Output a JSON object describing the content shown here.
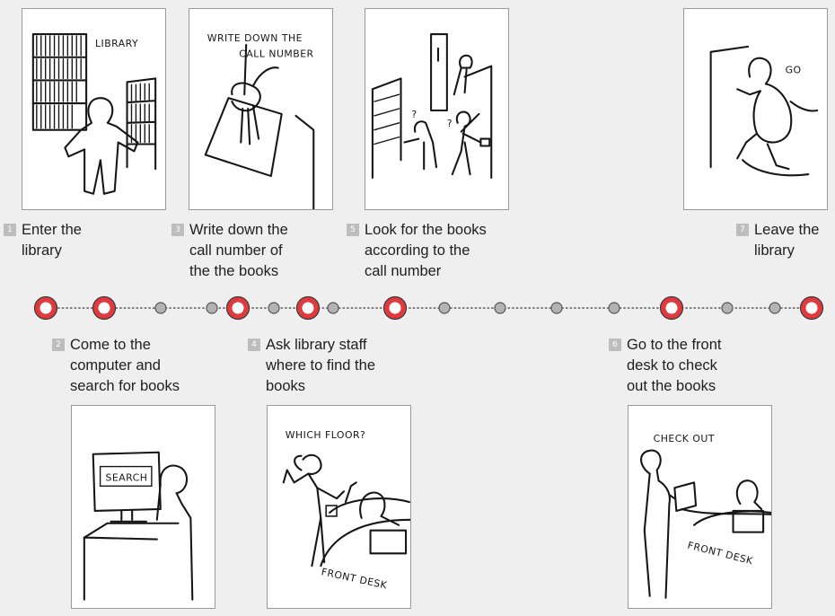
{
  "steps": [
    {
      "number": "1",
      "label": "Enter the\nlibrary",
      "sketch_text": "LIBRARY"
    },
    {
      "number": "2",
      "label": "Come to the\ncomputer and\nsearch for books",
      "sketch_text": "SEARCH"
    },
    {
      "number": "3",
      "label": "Write down the\ncall number of\nthe the books",
      "sketch_text_line1": "WRITE DOWN THE",
      "sketch_text_line2": "CALL NUMBER"
    },
    {
      "number": "4",
      "label": "Ask library staff\nwhere to find the\nbooks",
      "sketch_text": "WHICH FLOOR?",
      "sketch_text_2": "FRONT DESK"
    },
    {
      "number": "5",
      "label": "Look for the books\naccording to the\ncall number",
      "sketch_text": "?",
      "sketch_text_2": "?"
    },
    {
      "number": "6",
      "label": "Go to the front\ndesk to check\nout  the books",
      "sketch_text": "CHECK OUT",
      "sketch_text_2": "FRONT DESK"
    },
    {
      "number": "7",
      "label": "Leave the\nlibrary",
      "sketch_text": "GO"
    }
  ],
  "colors": {
    "background": "#efefef",
    "major_node_fill": "#e03a3e",
    "minor_node_fill": "#b3b3b3",
    "dotted_line": "#555555",
    "number_badge": "#bdbdbd"
  },
  "timeline": {
    "node_types": [
      "major",
      "major",
      "minor",
      "minor",
      "major",
      "minor",
      "major",
      "minor",
      "major",
      "minor",
      "minor",
      "minor",
      "minor",
      "minor",
      "major",
      "minor",
      "minor",
      "major"
    ]
  }
}
